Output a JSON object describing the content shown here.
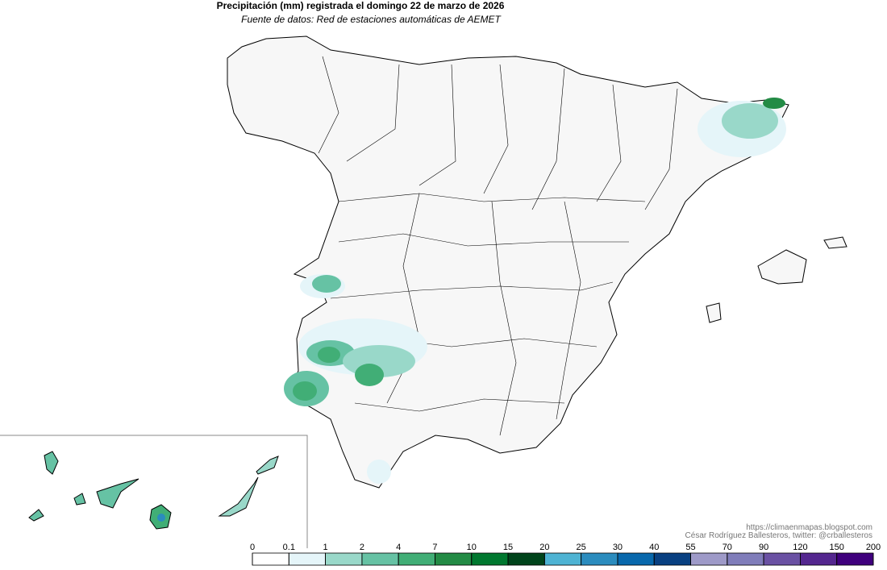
{
  "header": {
    "title": "Precipitación (mm) registrada el domingo 22 de marzo de 2026",
    "subtitle": "Fuente de datos: Red de estaciones automáticas de AEMET"
  },
  "credits": {
    "url": "https://climaenmapas.blogspot.com",
    "author": "César Rodríguez Ballesteros, twitter: @crballesteros"
  },
  "legend": {
    "ticks": [
      0,
      0.1,
      1,
      2,
      4,
      7,
      10,
      15,
      20,
      25,
      30,
      40,
      55,
      70,
      90,
      120,
      150,
      200
    ],
    "colors": [
      "#ffffff",
      "#e5f5f9",
      "#99d8c9",
      "#66c2a4",
      "#41ae76",
      "#238b45",
      "#00782f",
      "#00441b",
      "#4eb3d3",
      "#2b8cbe",
      "#0868ac",
      "#084081",
      "#9e9ac8",
      "#807dba",
      "#6a51a3",
      "#54278f",
      "#3f007d"
    ]
  }
}
